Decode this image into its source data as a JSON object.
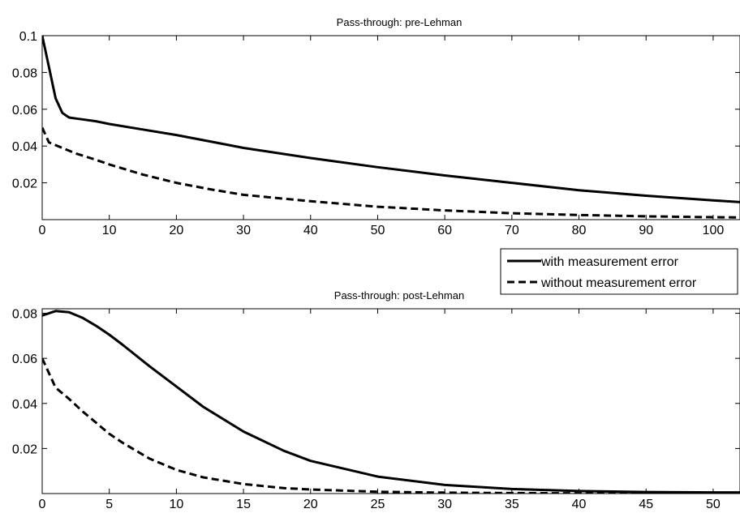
{
  "chart_data": [
    {
      "type": "line",
      "title": "Pass-through: pre-Lehman",
      "xlabel": "",
      "ylabel": "",
      "xlim": [
        0,
        104
      ],
      "ylim": [
        0,
        0.1
      ],
      "xticks": [
        0,
        10,
        20,
        30,
        40,
        50,
        60,
        70,
        80,
        90,
        100
      ],
      "yticks": [
        0.02,
        0.04,
        0.06,
        0.08,
        0.1
      ],
      "ytick_labels": [
        "0.02",
        "0.04",
        "0.06",
        "0.08",
        "0.1"
      ],
      "grid": false,
      "series": [
        {
          "name": "with measurement error",
          "style": "solid",
          "x": [
            0,
            1,
            2,
            3,
            4,
            5,
            6,
            8,
            10,
            15,
            20,
            25,
            30,
            40,
            50,
            60,
            70,
            80,
            90,
            100,
            104
          ],
          "y": [
            0.1,
            0.083,
            0.066,
            0.058,
            0.0555,
            0.055,
            0.0545,
            0.0535,
            0.052,
            0.049,
            0.046,
            0.0425,
            0.039,
            0.0335,
            0.0285,
            0.024,
            0.02,
            0.016,
            0.013,
            0.0105,
            0.0095
          ]
        },
        {
          "name": "without measurement error",
          "style": "dashed",
          "x": [
            0,
            1,
            2,
            3,
            5,
            8,
            10,
            15,
            20,
            25,
            30,
            40,
            50,
            60,
            70,
            80,
            90,
            100,
            104
          ],
          "y": [
            0.05,
            0.042,
            0.0405,
            0.039,
            0.036,
            0.0325,
            0.03,
            0.0245,
            0.02,
            0.0165,
            0.0135,
            0.01,
            0.007,
            0.005,
            0.0035,
            0.0025,
            0.0018,
            0.0013,
            0.0012
          ]
        }
      ]
    },
    {
      "type": "line",
      "title": "Pass-through: post-Lehman",
      "xlabel": "",
      "ylabel": "",
      "xlim": [
        0,
        52
      ],
      "ylim": [
        0,
        0.082
      ],
      "xticks": [
        0,
        5,
        10,
        15,
        20,
        25,
        30,
        35,
        40,
        45,
        50
      ],
      "yticks": [
        0.02,
        0.04,
        0.06,
        0.08
      ],
      "ytick_labels": [
        "0.02",
        "0.04",
        "0.06",
        "0.08"
      ],
      "grid": false,
      "series": [
        {
          "name": "with measurement error",
          "style": "solid",
          "x": [
            0,
            1,
            2,
            3,
            4,
            5,
            6,
            8,
            10,
            12,
            15,
            18,
            20,
            25,
            30,
            35,
            40,
            45,
            50,
            52
          ],
          "y": [
            0.079,
            0.081,
            0.0805,
            0.078,
            0.0745,
            0.0705,
            0.066,
            0.0565,
            0.0475,
            0.0385,
            0.0275,
            0.019,
            0.0145,
            0.0075,
            0.0038,
            0.002,
            0.0011,
            0.0007,
            0.0005,
            0.0005
          ]
        },
        {
          "name": "without measurement error",
          "style": "dashed",
          "x": [
            0,
            1,
            2,
            3,
            4,
            5,
            6,
            8,
            10,
            12,
            15,
            18,
            20,
            25,
            30,
            35,
            40,
            45,
            50,
            52
          ],
          "y": [
            0.06,
            0.047,
            0.042,
            0.0365,
            0.0315,
            0.0265,
            0.0225,
            0.0155,
            0.0105,
            0.0072,
            0.0042,
            0.0024,
            0.0018,
            0.0008,
            0.0004,
            0.0002,
            0.0001,
            0.0001,
            0.0,
            0.0
          ]
        }
      ]
    }
  ],
  "legend": {
    "placement": "between-panels-right",
    "entries": [
      {
        "label": "with measurement error",
        "style": "solid"
      },
      {
        "label": "without measurement error",
        "style": "dashed"
      }
    ]
  }
}
